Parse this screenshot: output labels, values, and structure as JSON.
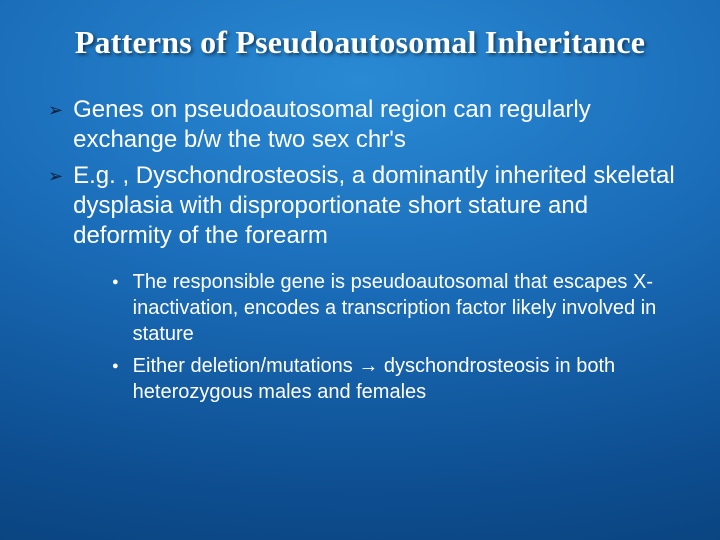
{
  "slide": {
    "title": "Patterns of Pseudoautosomal Inheritance",
    "background": {
      "gradient_center": "#2a8ad4",
      "gradient_mid": "#1a6cb8",
      "gradient_outer": "#0d4d8f",
      "gradient_edge": "#083a70"
    },
    "title_style": {
      "font_family": "Times New Roman",
      "font_size_pt": 32,
      "font_weight": "bold",
      "color": "#ffffff",
      "align": "center",
      "shadow": true
    },
    "bullets_level1": [
      {
        "marker": "➢",
        "marker_color": "#0a1f3a",
        "text": "Genes on pseudoautosomal region can regularly exchange b/w the two sex chr's"
      },
      {
        "marker": "➢",
        "marker_color": "#0a1f3a",
        "text": "E.g. , Dyschondrosteosis, a dominantly inherited skeletal dysplasia with disproportionate short stature and deformity of the forearm"
      }
    ],
    "bullets_level2": [
      {
        "marker": "●",
        "marker_color": "#ffffff",
        "text": "The responsible gene is pseudoautosomal that escapes X-inactivation, encodes a transcription factor likely involved in stature"
      },
      {
        "marker": "●",
        "marker_color": "#ffffff",
        "text": "Either deletion/mutations → dyschondrosteosis in both heterozygous males and females"
      }
    ],
    "body_style": {
      "level1_font_size_pt": 24,
      "level1_line_height": 30,
      "level2_font_size_pt": 20,
      "level2_line_height": 26,
      "font_family": "Arial",
      "text_color": "#ffffff"
    }
  }
}
